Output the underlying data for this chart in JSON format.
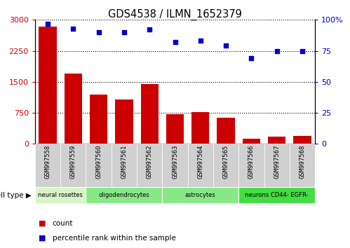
{
  "title": "GDS4538 / ILMN_1652379",
  "samples": [
    "GSM997558",
    "GSM997559",
    "GSM997560",
    "GSM997561",
    "GSM997562",
    "GSM997563",
    "GSM997564",
    "GSM997565",
    "GSM997566",
    "GSM997567",
    "GSM997568"
  ],
  "counts": [
    2840,
    1700,
    1200,
    1080,
    1450,
    720,
    770,
    640,
    130,
    175,
    185
  ],
  "percentile": [
    97,
    93,
    90,
    90,
    92,
    82,
    83,
    79,
    69,
    75,
    75
  ],
  "cell_types": [
    {
      "label": "neural rosettes",
      "start": 0,
      "end": 2,
      "color": "#d8f4c8"
    },
    {
      "label": "oligodendrocytes",
      "start": 2,
      "end": 5,
      "color": "#88e888"
    },
    {
      "label": "astrocytes",
      "start": 5,
      "end": 8,
      "color": "#88e888"
    },
    {
      "label": "neurons CD44- EGFR-",
      "start": 8,
      "end": 11,
      "color": "#44dd44"
    }
  ],
  "ylim_left": [
    0,
    3000
  ],
  "ylim_right": [
    0,
    100
  ],
  "yticks_left": [
    0,
    750,
    1500,
    2250,
    3000
  ],
  "yticks_right": [
    0,
    25,
    50,
    75,
    100
  ],
  "bar_color": "#cc0000",
  "dot_color": "#0000cc",
  "grid_color": "#000000",
  "bg_color": "#ffffff",
  "tick_label_color_left": "#cc0000",
  "tick_label_color_right": "#0000cc",
  "xticklabel_bg": "#d0d0d0"
}
